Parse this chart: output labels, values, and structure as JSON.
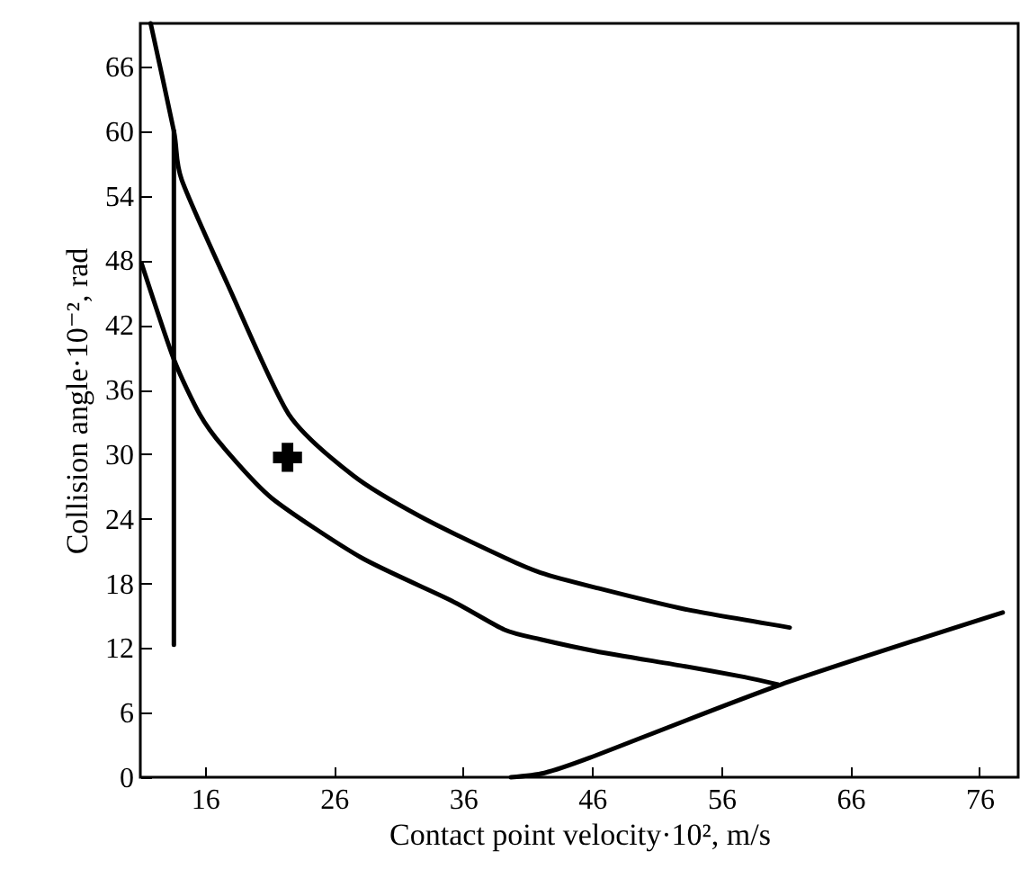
{
  "chart_data": {
    "type": "line",
    "xlabel": "Contact point velocity·10², m/s",
    "ylabel": "Collision angle·10⁻², rad",
    "xlim": [
      11,
      79
    ],
    "xticks": [
      16,
      26,
      36,
      46,
      56,
      66,
      76
    ],
    "ylim": [
      0,
      70
    ],
    "yticks": [
      0,
      6,
      12,
      18,
      24,
      30,
      36,
      42,
      48,
      54,
      60,
      66
    ],
    "grid": false,
    "marker": "none",
    "line_style": "solid",
    "series": [
      {
        "color": "#000000",
        "x": [
          11.8,
          13.6,
          14.2,
          17.9,
          22.5,
          27.5,
          32.7,
          39.2,
          42,
          46.3,
          53.2,
          61.3
        ],
        "values": [
          70,
          60,
          55.5,
          45.4,
          33.7,
          28,
          24.2,
          20.4,
          19,
          17.6,
          15.6,
          13.9
        ]
      },
      {
        "color": "#000000",
        "x": [
          11.1,
          13.6,
          15.6,
          17.4,
          21.2,
          28.1,
          35.1,
          39.2,
          42,
          46.3,
          53.2,
          57.8,
          60.4
        ],
        "values": [
          47.7,
          38.8,
          33.7,
          30.7,
          25.9,
          20.4,
          16.4,
          13.7,
          12.8,
          11.7,
          10.3,
          9.3,
          8.6
        ]
      },
      {
        "color": "#000000",
        "x": [
          39.7,
          42.3,
          45.8,
          60.6,
          77.8
        ],
        "values": [
          0,
          0.4,
          1.8,
          8.6,
          15.3
        ]
      },
      {
        "color": "#000000",
        "x": [
          13.6,
          13.6
        ],
        "values": [
          60,
          12.3
        ]
      },
      {
        "type": "scatter",
        "marker": "cross",
        "color": "#000000",
        "x": [
          22.4
        ],
        "values": [
          29.7
        ]
      }
    ]
  }
}
